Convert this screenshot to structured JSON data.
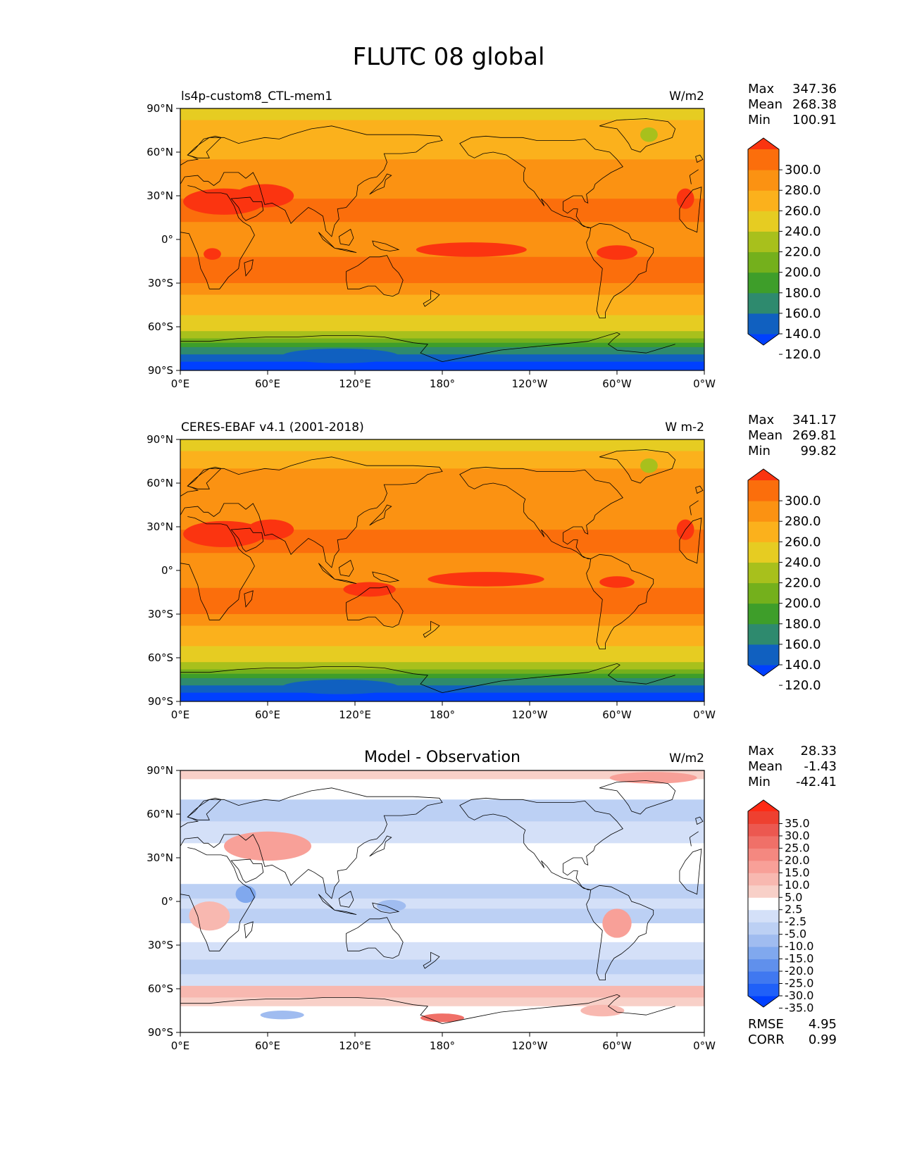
{
  "figure_title": "FLUTC 08 global",
  "colors": {
    "abs_levels": [
      "#0040ff",
      "#1060c0",
      "#2e8a6e",
      "#3e9e2a",
      "#74b01c",
      "#a8c01c",
      "#e6cc22",
      "#fbb11c",
      "#fb9212",
      "#fb6e0c",
      "#fb3410"
    ],
    "diff_levels": [
      "#0040ff",
      "#2060f8",
      "#4078f0",
      "#6090ec",
      "#80a8ee",
      "#a0bcf0",
      "#bcd0f4",
      "#d4e0f8",
      "#e8eefc",
      "#ffffff",
      "#fce8e4",
      "#f8d0c8",
      "#f8b8b0",
      "#f8a098",
      "#f48880",
      "#f07068",
      "#ec5850",
      "#ee4030",
      "#ff2a14"
    ],
    "coastline": "#000000"
  },
  "chart_data": [
    {
      "type": "heatmap",
      "id": "model",
      "title_left": "ls4p-custom8_CTL-mem1",
      "units": "W/m2",
      "x_ticks": [
        "0°E",
        "60°E",
        "120°E",
        "180°",
        "120°W",
        "60°W",
        "0°W"
      ],
      "y_ticks": [
        "90°N",
        "60°N",
        "30°N",
        "0°",
        "30°S",
        "60°S",
        "90°S"
      ],
      "stats": [
        {
          "label": "Max",
          "value": "347.36"
        },
        {
          "label": "Mean",
          "value": "268.38"
        },
        {
          "label": "Min",
          "value": "100.91"
        }
      ],
      "colorbar_ticks": [
        "300.0",
        "280.0",
        "260.0",
        "240.0",
        "220.0",
        "200.0",
        "180.0",
        "160.0",
        "140.0",
        "120.0"
      ],
      "zonal_bands": [
        {
          "lat_top": 90,
          "lat_bottom": 82,
          "value": 235
        },
        {
          "lat_top": 82,
          "lat_bottom": 70,
          "value": 248
        },
        {
          "lat_top": 70,
          "lat_bottom": 55,
          "value": 258
        },
        {
          "lat_top": 55,
          "lat_bottom": 40,
          "value": 262
        },
        {
          "lat_top": 40,
          "lat_bottom": 28,
          "value": 272
        },
        {
          "lat_top": 28,
          "lat_bottom": 12,
          "value": 282
        },
        {
          "lat_top": 12,
          "lat_bottom": 2,
          "value": 262
        },
        {
          "lat_top": 2,
          "lat_bottom": -12,
          "value": 272
        },
        {
          "lat_top": -12,
          "lat_bottom": -30,
          "value": 282
        },
        {
          "lat_top": -30,
          "lat_bottom": -38,
          "value": 272
        },
        {
          "lat_top": -38,
          "lat_bottom": -45,
          "value": 258
        },
        {
          "lat_top": -45,
          "lat_bottom": -52,
          "value": 245
        },
        {
          "lat_top": -52,
          "lat_bottom": -58,
          "value": 235
        },
        {
          "lat_top": -58,
          "lat_bottom": -63,
          "value": 225
        },
        {
          "lat_top": -63,
          "lat_bottom": -68,
          "value": 212
        },
        {
          "lat_top": -68,
          "lat_bottom": -71,
          "value": 195
        },
        {
          "lat_top": -71,
          "lat_bottom": -74,
          "value": 175
        },
        {
          "lat_top": -74,
          "lat_bottom": -79,
          "value": 155
        },
        {
          "lat_top": -79,
          "lat_bottom": -84,
          "value": 125
        },
        {
          "lat_top": -84,
          "lat_bottom": -90,
          "value": 115
        }
      ],
      "patches": [
        {
          "lon": 30,
          "lat": 26,
          "rlon": 28,
          "rlat": 9,
          "value": 300
        },
        {
          "lon": 58,
          "lat": 30,
          "rlon": 20,
          "rlat": 8,
          "value": 302
        },
        {
          "lon": 200,
          "lat": -7,
          "rlon": 38,
          "rlat": 5,
          "value": 302
        },
        {
          "lon": 300,
          "lat": -9,
          "rlon": 14,
          "rlat": 5,
          "value": 302
        },
        {
          "lon": 22,
          "lat": -10,
          "rlon": 6,
          "rlat": 4,
          "value": 302
        },
        {
          "lon": 347,
          "lat": 28,
          "rlon": 6,
          "rlat": 7,
          "value": 302
        },
        {
          "lon": 322,
          "lat": 72,
          "rlon": 6,
          "rlat": 5,
          "value": 215
        },
        {
          "lon": 110,
          "lat": -80,
          "rlon": 40,
          "rlat": 5,
          "value": 135
        }
      ]
    },
    {
      "type": "heatmap",
      "id": "observation",
      "title_left": "CERES-EBAF v4.1 (2001-2018)",
      "units": "W m-2",
      "x_ticks": [
        "0°E",
        "60°E",
        "120°E",
        "180°",
        "120°W",
        "60°W",
        "0°W"
      ],
      "y_ticks": [
        "90°N",
        "60°N",
        "30°N",
        "0°",
        "30°S",
        "60°S",
        "90°S"
      ],
      "stats": [
        {
          "label": "Max",
          "value": "341.17"
        },
        {
          "label": "Mean",
          "value": "269.81"
        },
        {
          "label": "Min",
          "value": "99.82"
        }
      ],
      "colorbar_ticks": [
        "300.0",
        "280.0",
        "260.0",
        "240.0",
        "220.0",
        "200.0",
        "180.0",
        "160.0",
        "140.0",
        "120.0"
      ],
      "zonal_bands": [
        {
          "lat_top": 90,
          "lat_bottom": 82,
          "value": 235
        },
        {
          "lat_top": 82,
          "lat_bottom": 70,
          "value": 248
        },
        {
          "lat_top": 70,
          "lat_bottom": 55,
          "value": 260
        },
        {
          "lat_top": 55,
          "lat_bottom": 40,
          "value": 266
        },
        {
          "lat_top": 40,
          "lat_bottom": 28,
          "value": 275
        },
        {
          "lat_top": 28,
          "lat_bottom": 12,
          "value": 282
        },
        {
          "lat_top": 12,
          "lat_bottom": 2,
          "value": 268
        },
        {
          "lat_top": 2,
          "lat_bottom": -12,
          "value": 274
        },
        {
          "lat_top": -12,
          "lat_bottom": -30,
          "value": 282
        },
        {
          "lat_top": -30,
          "lat_bottom": -38,
          "value": 270
        },
        {
          "lat_top": -38,
          "lat_bottom": -45,
          "value": 256
        },
        {
          "lat_top": -45,
          "lat_bottom": -52,
          "value": 245
        },
        {
          "lat_top": -52,
          "lat_bottom": -58,
          "value": 235
        },
        {
          "lat_top": -58,
          "lat_bottom": -63,
          "value": 225
        },
        {
          "lat_top": -63,
          "lat_bottom": -68,
          "value": 212
        },
        {
          "lat_top": -68,
          "lat_bottom": -71,
          "value": 195
        },
        {
          "lat_top": -71,
          "lat_bottom": -74,
          "value": 175
        },
        {
          "lat_top": -74,
          "lat_bottom": -79,
          "value": 155
        },
        {
          "lat_top": -79,
          "lat_bottom": -84,
          "value": 125
        },
        {
          "lat_top": -84,
          "lat_bottom": -90,
          "value": 115
        }
      ],
      "patches": [
        {
          "lon": 30,
          "lat": 25,
          "rlon": 28,
          "rlat": 9,
          "value": 302
        },
        {
          "lon": 62,
          "lat": 28,
          "rlon": 16,
          "rlat": 7,
          "value": 302
        },
        {
          "lon": 210,
          "lat": -6,
          "rlon": 40,
          "rlat": 5,
          "value": 304
        },
        {
          "lon": 130,
          "lat": -13,
          "rlon": 18,
          "rlat": 5,
          "value": 302
        },
        {
          "lon": 300,
          "lat": -8,
          "rlon": 12,
          "rlat": 4,
          "value": 302
        },
        {
          "lon": 347,
          "lat": 28,
          "rlon": 6,
          "rlat": 7,
          "value": 302
        },
        {
          "lon": 322,
          "lat": 72,
          "rlon": 6,
          "rlat": 5,
          "value": 215
        },
        {
          "lon": 110,
          "lat": -80,
          "rlon": 40,
          "rlat": 5,
          "value": 125
        }
      ]
    },
    {
      "type": "heatmap",
      "id": "difference",
      "title_center": "Model - Observation",
      "units": "W/m2",
      "x_ticks": [
        "0°E",
        "60°E",
        "120°E",
        "180°",
        "120°W",
        "60°W",
        "0°W"
      ],
      "y_ticks": [
        "90°N",
        "60°N",
        "30°N",
        "0°",
        "30°S",
        "60°S",
        "90°S"
      ],
      "stats": [
        {
          "label": "Max",
          "value": "28.33"
        },
        {
          "label": "Mean",
          "value": "-1.43"
        },
        {
          "label": "Min",
          "value": "-42.41"
        }
      ],
      "colorbar_ticks": [
        "35.0",
        "30.0",
        "25.0",
        "20.0",
        "15.0",
        "10.0",
        "5.0",
        "2.5",
        "-2.5",
        "-5.0",
        "-10.0",
        "-15.0",
        "-20.0",
        "-25.0",
        "-30.0",
        "-35.0"
      ],
      "metrics": [
        {
          "label": "RMSE",
          "value": "4.95"
        },
        {
          "label": "CORR",
          "value": "0.99"
        }
      ],
      "zonal_bands": [
        {
          "lat_top": 90,
          "lat_bottom": 84,
          "value": 4
        },
        {
          "lat_top": 84,
          "lat_bottom": 70,
          "value": 0
        },
        {
          "lat_top": 70,
          "lat_bottom": 55,
          "value": -6
        },
        {
          "lat_top": 55,
          "lat_bottom": 40,
          "value": -3
        },
        {
          "lat_top": 40,
          "lat_bottom": 25,
          "value": -2
        },
        {
          "lat_top": 25,
          "lat_bottom": 12,
          "value": 0
        },
        {
          "lat_top": 12,
          "lat_bottom": 2,
          "value": -7
        },
        {
          "lat_top": 2,
          "lat_bottom": -5,
          "value": -4
        },
        {
          "lat_top": -5,
          "lat_bottom": -15,
          "value": -6
        },
        {
          "lat_top": -15,
          "lat_bottom": -28,
          "value": 0
        },
        {
          "lat_top": -28,
          "lat_bottom": -40,
          "value": -3
        },
        {
          "lat_top": -40,
          "lat_bottom": -50,
          "value": -8
        },
        {
          "lat_top": -50,
          "lat_bottom": -58,
          "value": -4
        },
        {
          "lat_top": -58,
          "lat_bottom": -66,
          "value": 7
        },
        {
          "lat_top": -66,
          "lat_bottom": -72,
          "value": 3
        },
        {
          "lat_top": -72,
          "lat_bottom": -90,
          "value": 0
        }
      ],
      "patches": [
        {
          "lon": 60,
          "lat": 38,
          "rlon": 30,
          "rlat": 10,
          "value": 12
        },
        {
          "lon": 20,
          "lat": -10,
          "rlon": 14,
          "rlat": 10,
          "value": 8
        },
        {
          "lon": 300,
          "lat": -15,
          "rlon": 10,
          "rlat": 10,
          "value": 10
        },
        {
          "lon": 180,
          "lat": -80,
          "rlon": 15,
          "rlat": 3,
          "value": 20
        },
        {
          "lon": 290,
          "lat": -75,
          "rlon": 15,
          "rlat": 4,
          "value": 8
        },
        {
          "lon": 325,
          "lat": 85,
          "rlon": 30,
          "rlat": 4,
          "value": 10
        },
        {
          "lon": 45,
          "lat": 5,
          "rlon": 7,
          "rlat": 6,
          "value": -18
        },
        {
          "lon": 70,
          "lat": -78,
          "rlon": 15,
          "rlat": 3,
          "value": -12
        },
        {
          "lon": 145,
          "lat": -3,
          "rlon": 10,
          "rlat": 4,
          "value": -14
        }
      ]
    }
  ]
}
